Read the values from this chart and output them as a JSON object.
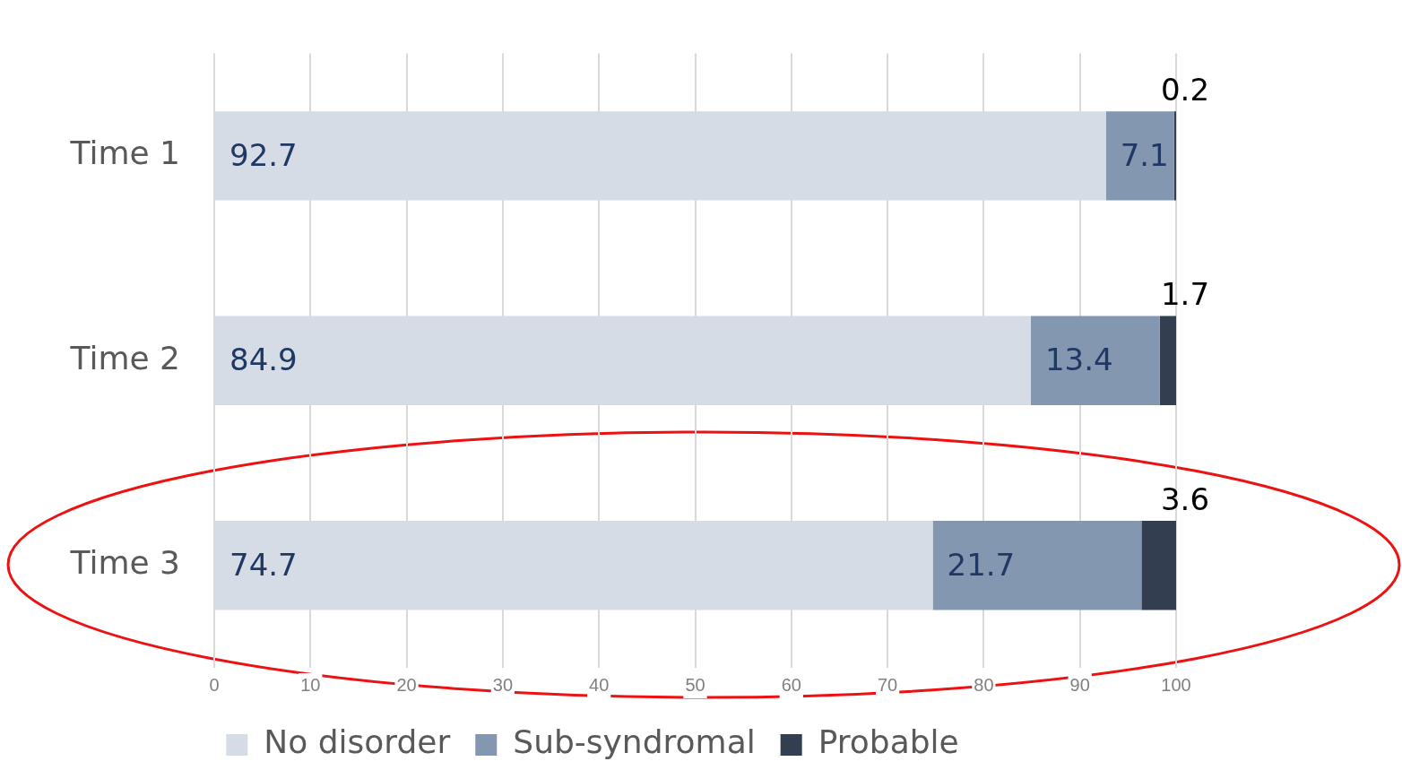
{
  "chart_data": {
    "type": "bar",
    "orientation": "horizontal",
    "stacked": true,
    "categories": [
      "Time 1",
      "Time 2",
      "Time 3"
    ],
    "series": [
      {
        "name": "No disorder",
        "color": "#d6dce5",
        "values": [
          92.7,
          84.9,
          74.7
        ]
      },
      {
        "name": "Sub-syndromal",
        "color": "#8497b0",
        "values": [
          7.1,
          13.4,
          21.7
        ]
      },
      {
        "name": "Probable",
        "color": "#333f50",
        "values": [
          0.2,
          1.7,
          3.6
        ]
      }
    ],
    "xlim": [
      0,
      100
    ],
    "xticks": [
      0,
      10,
      20,
      30,
      40,
      50,
      60,
      70,
      80,
      90,
      100
    ],
    "grid": "x",
    "legend": "bottom",
    "data_labels": true
  }
}
